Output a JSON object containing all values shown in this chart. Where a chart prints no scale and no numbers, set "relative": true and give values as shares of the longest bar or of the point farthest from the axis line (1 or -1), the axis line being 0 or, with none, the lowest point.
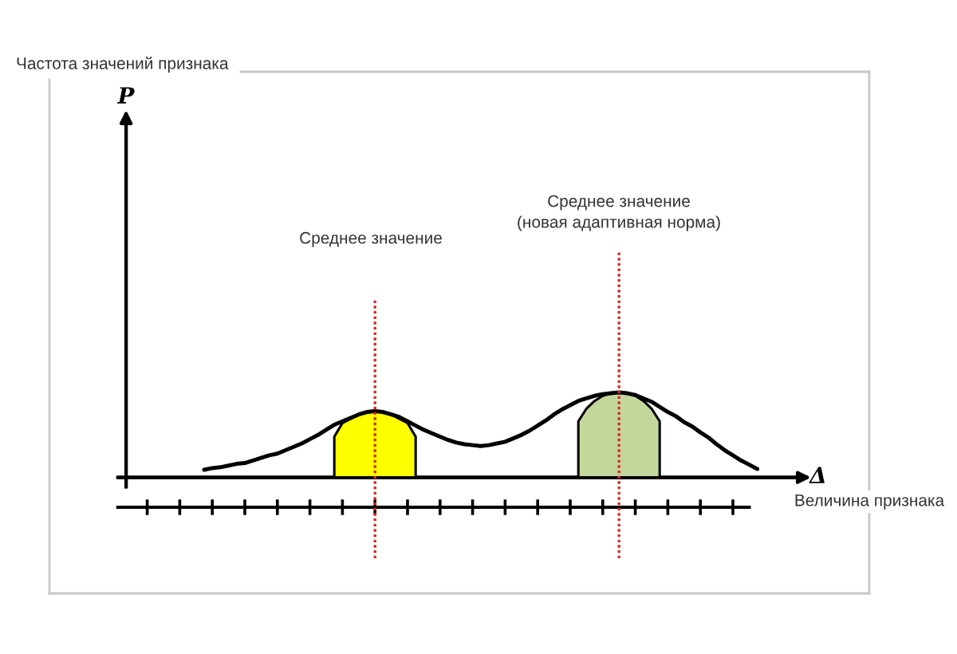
{
  "chart_data": {
    "type": "line",
    "relative": true,
    "title": "Частота значений признака",
    "xlabel": "Величина признака",
    "annotations": [
      "P",
      "Среднее значение",
      "Среднее значение\n(новая адаптивная норма)",
      "Δ"
    ],
    "categories": [
      null,
      null,
      null,
      null,
      null,
      null,
      null,
      null,
      null,
      null,
      null,
      null,
      null,
      null,
      null,
      null,
      null,
      null,
      null,
      null,
      null,
      null,
      null,
      null,
      null,
      null,
      null,
      null,
      null,
      null,
      null,
      null,
      null,
      null,
      null,
      null,
      null,
      null,
      null,
      null,
      null,
      null,
      null,
      null,
      null,
      null,
      null,
      null,
      null,
      null,
      null,
      null,
      null,
      null,
      null,
      null,
      null,
      null,
      null,
      null,
      null,
      null,
      null,
      null,
      null,
      null,
      null,
      null,
      null,
      null,
      null,
      null,
      null,
      null,
      null,
      null
    ],
    "series": [
      {
        "type": "area",
        "color": "#ffff00",
        "values": [
          null,
          null,
          null,
          null,
          null,
          null,
          null,
          null,
          null,
          null,
          null,
          null,
          null,
          null,
          null,
          null,
          null,
          null,
          null,
          null,
          null,
          null,
          null,
          0.48,
          0.64,
          0.69,
          0.74,
          0.76,
          0.78,
          0.76,
          0.74,
          0.69,
          0.64,
          0.48,
          null,
          null,
          null,
          null,
          null,
          null,
          null,
          null,
          null,
          null,
          null,
          null,
          null,
          null,
          null,
          null,
          null,
          null,
          null,
          null,
          null,
          null,
          null,
          null,
          null,
          null,
          null,
          null,
          null,
          null,
          null,
          null,
          null,
          null,
          null,
          null,
          null,
          null,
          null,
          null,
          null,
          null
        ]
      },
      {
        "type": "area",
        "color": "#c4d79b",
        "values": [
          null,
          null,
          null,
          null,
          null,
          null,
          null,
          null,
          null,
          null,
          null,
          null,
          null,
          null,
          null,
          null,
          null,
          null,
          null,
          null,
          null,
          null,
          null,
          null,
          null,
          null,
          null,
          null,
          null,
          null,
          null,
          null,
          null,
          null,
          null,
          null,
          null,
          null,
          null,
          null,
          null,
          null,
          null,
          null,
          null,
          null,
          null,
          null,
          null,
          null,
          null,
          null,
          null,
          0.66,
          0.81,
          0.9,
          0.96,
          0.99,
          1,
          0.99,
          0.96,
          0.9,
          0.81,
          0.66,
          null,
          null,
          null,
          null,
          null,
          null,
          null,
          null,
          null,
          null,
          null,
          null
        ]
      },
      {
        "color": "#000000",
        "values": [
          null,
          null,
          null,
          null,
          null,
          null,
          null,
          0.09,
          0.11,
          0.12,
          0.14,
          0.16,
          0.17,
          0.2,
          0.23,
          0.26,
          0.28,
          0.32,
          0.36,
          0.4,
          0.45,
          0.5,
          0.56,
          0.62,
          0.66,
          0.7,
          0.74,
          0.77,
          0.78,
          0.77,
          0.74,
          0.71,
          0.66,
          0.61,
          0.56,
          0.52,
          0.48,
          0.44,
          0.41,
          0.39,
          0.38,
          0.37,
          0.38,
          0.4,
          0.42,
          0.46,
          0.5,
          0.55,
          0.61,
          0.67,
          0.74,
          0.8,
          0.85,
          0.9,
          0.93,
          0.96,
          0.98,
          0.99,
          1,
          0.99,
          0.97,
          0.93,
          0.89,
          0.83,
          0.77,
          0.72,
          0.65,
          0.6,
          0.53,
          0.47,
          0.39,
          0.32,
          0.26,
          0.2,
          0.15,
          0.1
        ]
      }
    ]
  }
}
